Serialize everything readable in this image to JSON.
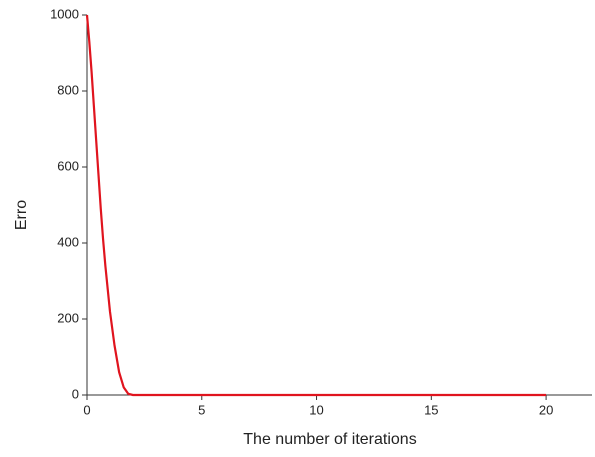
{
  "chart_data": {
    "type": "line",
    "x_label": "The number of iterations",
    "y_label": "Erro",
    "x": [
      0,
      0.1,
      0.2,
      0.3,
      0.4,
      0.5,
      0.6,
      0.7,
      0.8,
      1.0,
      1.2,
      1.4,
      1.6,
      1.8,
      2,
      3,
      4,
      5,
      6,
      7,
      8,
      9,
      10,
      11,
      12,
      13,
      14,
      15,
      16,
      17,
      18,
      19,
      20
    ],
    "series": [
      {
        "name": "Erro",
        "color": "#e0141e",
        "values": [
          1000,
          930,
          850,
          760,
          670,
          580,
          490,
          410,
          340,
          220,
          130,
          60,
          20,
          3,
          0,
          0,
          0,
          0,
          0,
          0,
          0,
          0,
          0,
          0,
          0,
          0,
          0,
          0,
          0,
          0,
          0,
          0,
          0
        ]
      }
    ],
    "xlim": [
      0,
      22
    ],
    "xticks": [
      0,
      5,
      10,
      15,
      20
    ],
    "ylim": [
      0,
      1000
    ],
    "yticks": [
      0,
      200,
      400,
      600,
      800,
      1000
    ]
  }
}
